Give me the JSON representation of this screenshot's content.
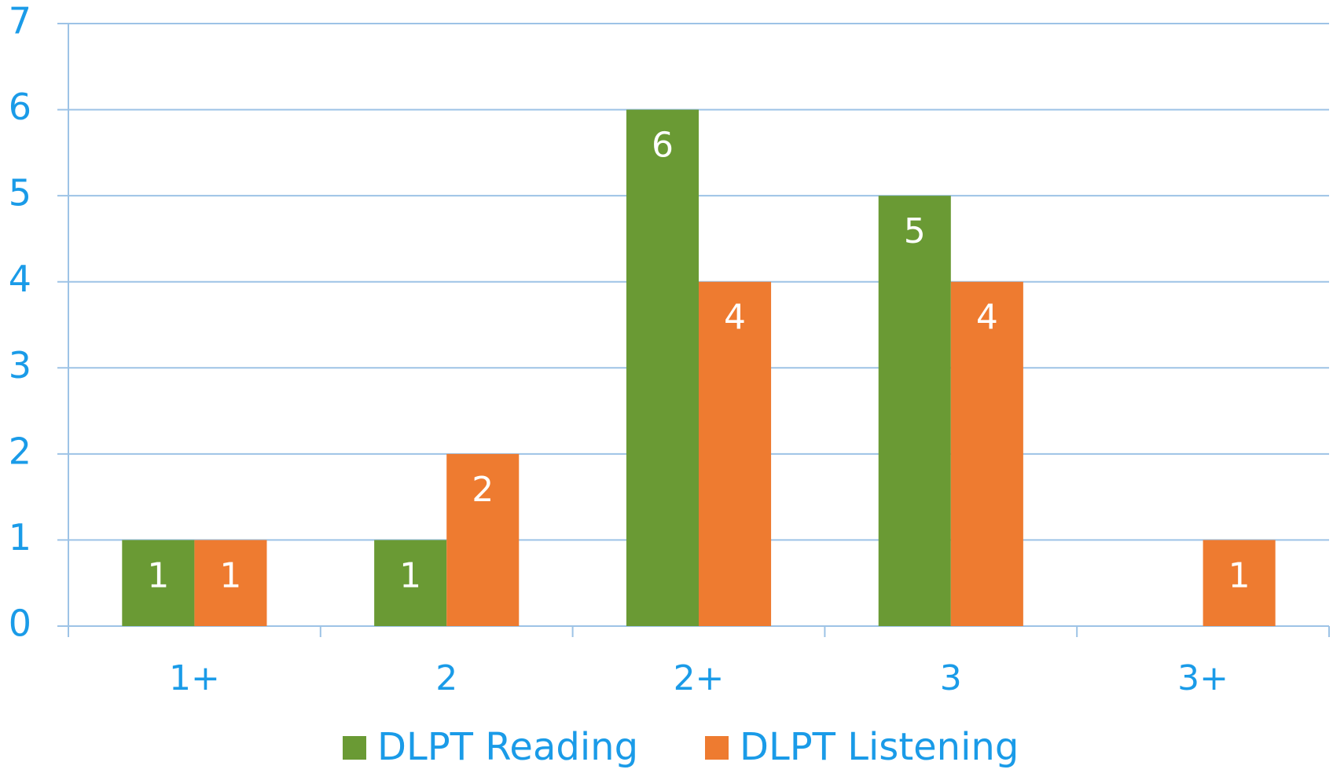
{
  "chart_data": {
    "type": "bar",
    "categories": [
      "1+",
      "2",
      "2+",
      "3",
      "3+"
    ],
    "series": [
      {
        "name": "DLPT Reading",
        "color": "#6a9a34",
        "values": [
          1,
          1,
          6,
          5,
          null
        ]
      },
      {
        "name": "DLPT Listening",
        "color": "#ee7b30",
        "values": [
          1,
          2,
          4,
          4,
          1
        ]
      }
    ],
    "ylim": [
      0,
      7
    ],
    "yticks": [
      0,
      1,
      2,
      3,
      4,
      5,
      6,
      7
    ],
    "grid": true,
    "legend": "bottom"
  }
}
